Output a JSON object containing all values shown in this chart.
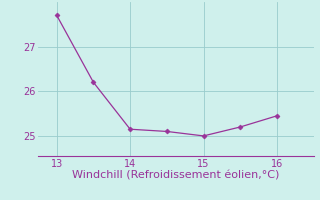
{
  "x": [
    13,
    13.5,
    14,
    14.5,
    15,
    15.5,
    16
  ],
  "y": [
    27.7,
    26.2,
    25.15,
    25.1,
    25.0,
    25.2,
    25.45
  ],
  "line_color": "#993399",
  "marker": "D",
  "marker_size": 2.5,
  "bg_color": "#cff0ec",
  "grid_color": "#99cccc",
  "xlabel": "Windchill (Refroidissement éolien,°C)",
  "xlabel_color": "#993399",
  "xlabel_fontsize": 8,
  "tick_color": "#993399",
  "tick_fontsize": 7,
  "xlim": [
    12.75,
    16.5
  ],
  "ylim": [
    24.55,
    28.0
  ],
  "xticks": [
    13,
    14,
    15,
    16
  ],
  "yticks": [
    25,
    26,
    27
  ],
  "spine_color": "#993399",
  "spine_bottom_color": "#993399"
}
